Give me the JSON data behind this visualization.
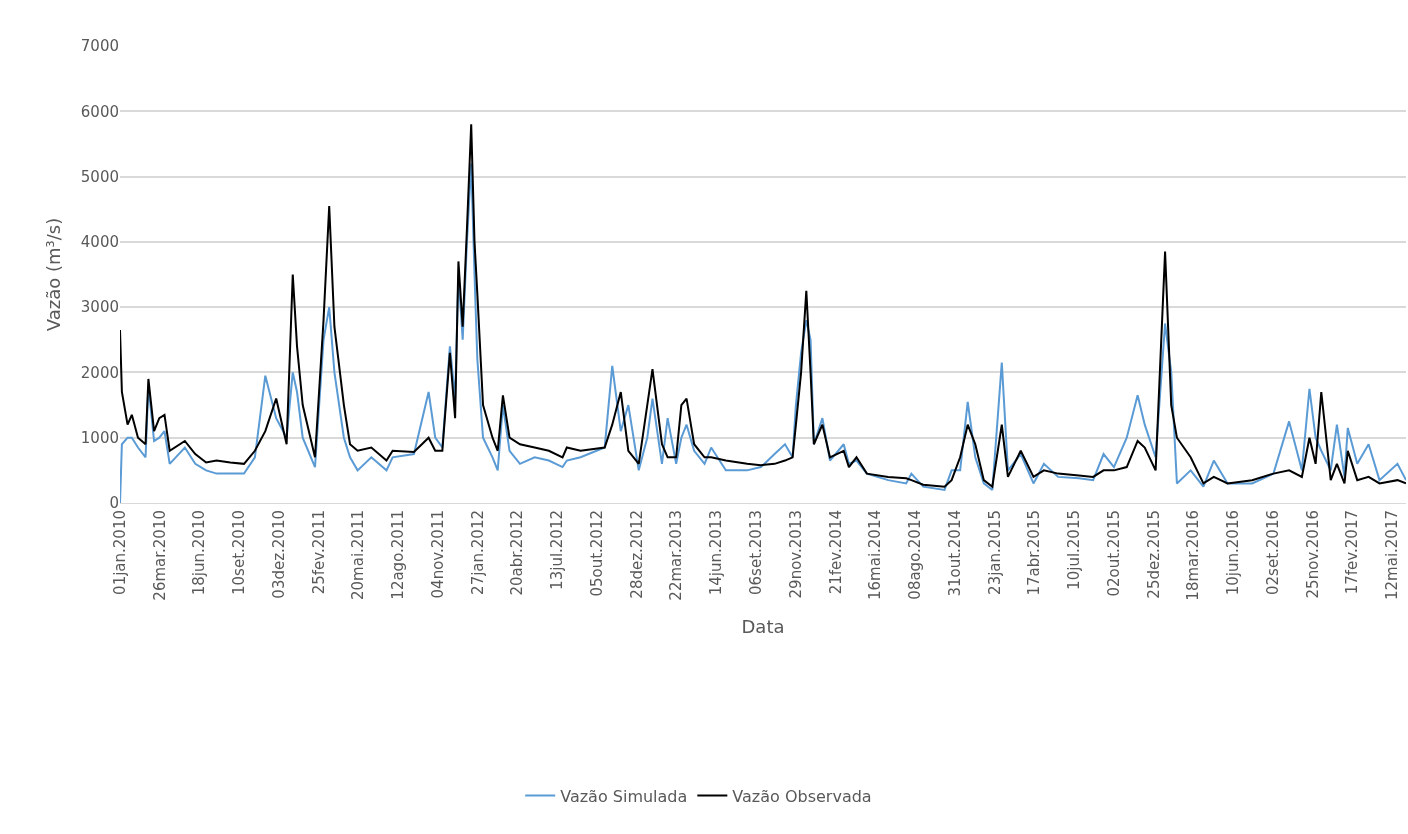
{
  "chart_data": {
    "type": "line",
    "xlabel": "Data",
    "ylabel": "Vazão (m³/s)",
    "x": [
      "2010-01-01",
      "2010-01-05",
      "2010-01-17",
      "2010-01-26",
      "2010-02-08",
      "2010-02-24",
      "2010-03-02",
      "2010-03-14",
      "2010-03-25",
      "2010-04-05",
      "2010-04-16",
      "2010-05-18",
      "2010-06-09",
      "2010-07-02",
      "2010-07-24",
      "2010-08-22",
      "2010-09-20",
      "2010-10-13",
      "2010-11-04",
      "2010-11-27",
      "2010-12-19",
      "2011-01-01",
      "2011-01-10",
      "2011-01-22",
      "2011-02-17",
      "2011-03-07",
      "2011-03-19",
      "2011-03-30",
      "2011-04-19",
      "2011-05-02",
      "2011-05-18",
      "2011-06-16",
      "2011-07-18",
      "2011-07-31",
      "2011-09-14",
      "2011-10-15",
      "2011-10-29",
      "2011-11-13",
      "2011-11-29",
      "2011-12-10",
      "2011-12-17",
      "2011-12-26",
      "2012-01-04",
      "2012-01-13",
      "2012-01-20",
      "2012-01-26",
      "2012-02-07",
      "2012-02-27",
      "2012-03-09",
      "2012-03-20",
      "2012-04-03",
      "2012-04-25",
      "2012-05-26",
      "2012-06-25",
      "2012-07-24",
      "2012-08-02",
      "2012-08-31",
      "2012-10-21",
      "2012-11-06",
      "2012-11-24",
      "2012-12-10",
      "2013-01-01",
      "2013-01-19",
      "2013-01-30",
      "2013-02-19",
      "2013-03-03",
      "2013-03-21",
      "2013-04-01",
      "2013-04-12",
      "2013-04-28",
      "2013-05-20",
      "2013-06-03",
      "2013-07-04",
      "2013-08-18",
      "2013-09-16",
      "2013-10-15",
      "2013-11-06",
      "2013-11-22",
      "2013-11-29",
      "2013-12-10",
      "2013-12-21",
      "2013-12-30",
      "2014-01-06",
      "2014-01-24",
      "2014-02-09",
      "2014-03-10",
      "2014-03-21",
      "2014-04-06",
      "2014-04-28",
      "2014-06-12",
      "2014-07-20",
      "2014-07-31",
      "2014-08-25",
      "2014-10-09",
      "2014-10-24",
      "2014-11-11",
      "2014-11-27",
      "2014-12-13",
      "2014-12-31",
      "2015-01-18",
      "2015-02-07",
      "2015-02-20",
      "2015-03-19",
      "2015-04-15",
      "2015-05-07",
      "2015-06-06",
      "2015-07-20",
      "2015-08-19",
      "2015-09-10",
      "2015-10-02",
      "2015-10-29",
      "2015-11-21",
      "2015-12-06",
      "2015-12-29",
      "2016-01-18",
      "2016-01-31",
      "2016-02-12",
      "2016-03-12",
      "2016-04-08",
      "2016-04-30",
      "2016-05-29",
      "2016-07-20",
      "2016-09-03",
      "2016-10-06",
      "2016-11-02",
      "2016-11-18",
      "2016-12-01",
      "2016-12-13",
      "2017-01-02",
      "2017-01-15",
      "2017-01-31",
      "2017-02-07",
      "2017-02-27",
      "2017-03-23",
      "2017-04-15",
      "2017-05-23",
      "2017-06-10"
    ],
    "series": [
      {
        "name": "Vazão Simulada",
        "color": "#5b9bd5",
        "values": [
          0,
          900,
          1000,
          1000,
          850,
          700,
          1800,
          950,
          1000,
          1100,
          600,
          850,
          600,
          500,
          450,
          450,
          450,
          700,
          1950,
          1300,
          1000,
          2000,
          1700,
          1000,
          550,
          2500,
          3000,
          2000,
          1000,
          700,
          500,
          700,
          500,
          700,
          750,
          1700,
          1000,
          850,
          2400,
          1600,
          3500,
          2500,
          4000,
          5200,
          3500,
          2200,
          1000,
          700,
          500,
          1500,
          800,
          600,
          700,
          650,
          550,
          650,
          700,
          850,
          2100,
          1100,
          1500,
          500,
          1000,
          1600,
          600,
          1300,
          600,
          1000,
          1200,
          800,
          600,
          850,
          500,
          500,
          550,
          750,
          900,
          700,
          1500,
          2300,
          2800,
          2500,
          900,
          1300,
          650,
          900,
          600,
          650,
          450,
          350,
          300,
          450,
          250,
          200,
          500,
          500,
          1550,
          700,
          300,
          200,
          2150,
          500,
          750,
          300,
          600,
          400,
          380,
          350,
          750,
          550,
          1000,
          1650,
          1200,
          700,
          2750,
          2000,
          300,
          500,
          250,
          650,
          300,
          300,
          450,
          1250,
          500,
          1750,
          1000,
          800,
          500,
          1200,
          400,
          1150,
          600,
          900,
          350,
          600,
          350
        ]
      },
      {
        "name": "Vazão Observada",
        "color": "#000000",
        "values": [
          2650,
          1700,
          1200,
          1350,
          1000,
          900,
          1900,
          1100,
          1300,
          1350,
          800,
          950,
          750,
          620,
          650,
          620,
          600,
          800,
          1100,
          1600,
          900,
          3500,
          2400,
          1500,
          700,
          2800,
          4550,
          2700,
          1500,
          900,
          800,
          850,
          650,
          800,
          780,
          1000,
          800,
          800,
          2300,
          1300,
          3700,
          2700,
          4200,
          5800,
          4000,
          3200,
          1500,
          1000,
          800,
          1650,
          1000,
          900,
          850,
          800,
          700,
          850,
          800,
          850,
          1200,
          1700,
          800,
          600,
          1500,
          2050,
          900,
          700,
          700,
          1500,
          1600,
          900,
          700,
          700,
          650,
          600,
          580,
          600,
          650,
          700,
          1200,
          2000,
          3250,
          2000,
          900,
          1200,
          700,
          800,
          550,
          700,
          450,
          400,
          380,
          350,
          280,
          250,
          350,
          700,
          1200,
          900,
          350,
          250,
          1200,
          400,
          800,
          400,
          500,
          450,
          420,
          400,
          500,
          500,
          550,
          950,
          850,
          500,
          3850,
          1500,
          1000,
          700,
          300,
          400,
          300,
          350,
          450,
          500,
          400,
          1000,
          600,
          1700,
          350,
          600,
          300,
          800,
          350,
          400,
          300,
          350,
          300
        ]
      }
    ],
    "xlim": [
      "2010-01-01",
      "2017-06-10"
    ],
    "xticks": [
      {
        "value": "2010-01-01",
        "label": "01jan.2010"
      },
      {
        "value": "2010-03-26",
        "label": "26mar.2010"
      },
      {
        "value": "2010-06-18",
        "label": "18jun.2010"
      },
      {
        "value": "2010-09-10",
        "label": "10set.2010"
      },
      {
        "value": "2010-12-03",
        "label": "03dez.2010"
      },
      {
        "value": "2011-02-25",
        "label": "25fev.2011"
      },
      {
        "value": "2011-05-20",
        "label": "20mai.2011"
      },
      {
        "value": "2011-08-12",
        "label": "12ago.2011"
      },
      {
        "value": "2011-11-04",
        "label": "04nov.2011"
      },
      {
        "value": "2012-01-27",
        "label": "27jan.2012"
      },
      {
        "value": "2012-04-20",
        "label": "20abr.2012"
      },
      {
        "value": "2012-07-13",
        "label": "13jul.2012"
      },
      {
        "value": "2012-10-05",
        "label": "05out.2012"
      },
      {
        "value": "2012-12-28",
        "label": "28dez.2012"
      },
      {
        "value": "2013-03-22",
        "label": "22mar.2013"
      },
      {
        "value": "2013-06-14",
        "label": "14jun.2013"
      },
      {
        "value": "2013-09-06",
        "label": "06set.2013"
      },
      {
        "value": "2013-11-29",
        "label": "29nov.2013"
      },
      {
        "value": "2014-02-21",
        "label": "21fev.2014"
      },
      {
        "value": "2014-05-16",
        "label": "16mai.2014"
      },
      {
        "value": "2014-08-08",
        "label": "08ago.2014"
      },
      {
        "value": "2014-10-31",
        "label": "31out.2014"
      },
      {
        "value": "2015-01-23",
        "label": "23jan.2015"
      },
      {
        "value": "2015-04-17",
        "label": "17abr.2015"
      },
      {
        "value": "2015-07-10",
        "label": "10jul.2015"
      },
      {
        "value": "2015-10-02",
        "label": "02out.2015"
      },
      {
        "value": "2015-12-25",
        "label": "25dez.2015"
      },
      {
        "value": "2016-03-18",
        "label": "18mar.2016"
      },
      {
        "value": "2016-06-10",
        "label": "10jun.2016"
      },
      {
        "value": "2016-09-02",
        "label": "02set.2016"
      },
      {
        "value": "2016-11-25",
        "label": "25nov.2016"
      },
      {
        "value": "2017-02-17",
        "label": "17fev.2017"
      },
      {
        "value": "2017-05-12",
        "label": "12mai.2017"
      }
    ],
    "ylim": [
      0,
      7000
    ],
    "yticks": [
      0,
      1000,
      2000,
      3000,
      4000,
      5000,
      6000,
      7000
    ],
    "grid": "y",
    "legend": "bottom",
    "line_style": "solid",
    "marker": "none"
  }
}
